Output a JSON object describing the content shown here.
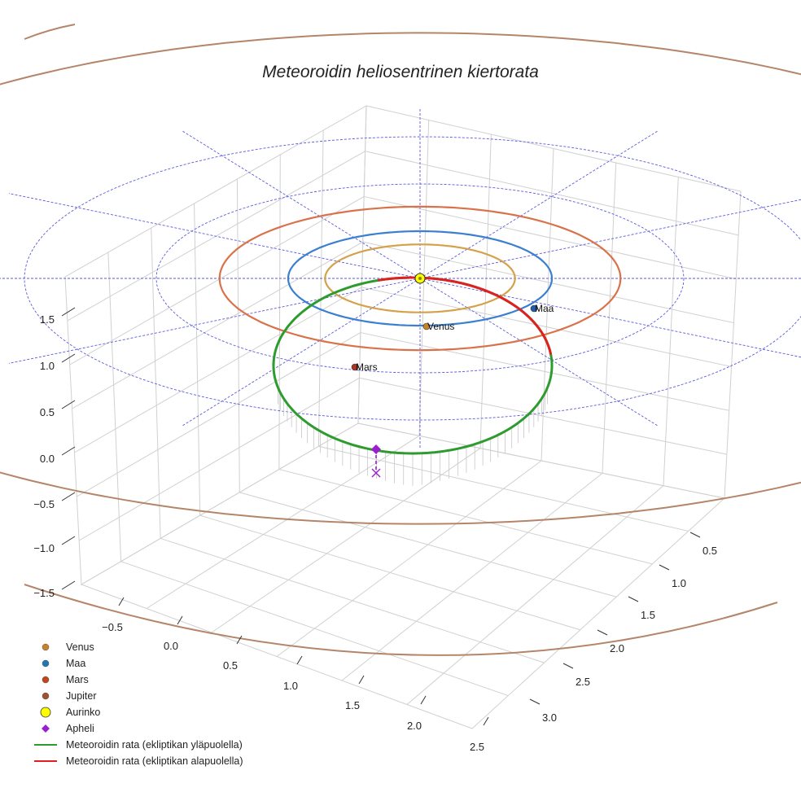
{
  "chart_data": {
    "type": "3d-orbit",
    "title": "Meteoroidin heliosentrinen kiertorata",
    "axes": {
      "x": {
        "ticks": [
          "−0.5",
          "0.0",
          "0.5",
          "1.0",
          "1.5",
          "2.0",
          "2.5"
        ]
      },
      "y": {
        "ticks": [
          "0.5",
          "1.0",
          "1.5",
          "2.0",
          "2.5",
          "3.0"
        ]
      },
      "z": {
        "ticks": [
          "1.5",
          "1.0",
          "0.5",
          "0.0",
          "−0.5",
          "−1.0",
          "−1.5"
        ]
      }
    },
    "planets": [
      {
        "name": "Venus",
        "label": "Venus",
        "orbit_radius_au": 0.72,
        "color": "#d4a24a",
        "marker": "#c8832a"
      },
      {
        "name": "Maa",
        "label": "Maa",
        "orbit_radius_au": 1.0,
        "color": "#3a7fd0",
        "marker": "#1f5fa8"
      },
      {
        "name": "Mars",
        "label": "Mars",
        "orbit_radius_au": 1.52,
        "color": "#d9714a",
        "marker": "#a8351f"
      },
      {
        "name": "Jupiter",
        "label": "",
        "orbit_radius_au": 5.2,
        "color": "#b5856a",
        "marker": "#8a5a3a"
      }
    ],
    "reference_circles_au": [
      1,
      2,
      3
    ],
    "meteoroid": {
      "above_color": "#2e9b2e",
      "below_color": "#e02020",
      "aphelion_color": "#9b1fcc"
    },
    "legend": {
      "position": "bottom-left",
      "entries": [
        {
          "label": "Venus",
          "kind": "dot",
          "color": "#c8832a"
        },
        {
          "label": "Maa",
          "kind": "dot",
          "color": "#1f77b4"
        },
        {
          "label": "Mars",
          "kind": "dot",
          "color": "#c2461c"
        },
        {
          "label": "Jupiter",
          "kind": "dot",
          "color": "#a0522d"
        },
        {
          "label": "Aurinko",
          "kind": "sun",
          "color": "#ffff00"
        },
        {
          "label": "Apheli",
          "kind": "diamond",
          "color": "#9b1fcc"
        },
        {
          "label": "Meteoroidin rata (ekliptikan yläpuolella)",
          "kind": "line",
          "color": "#2e9b2e"
        },
        {
          "label": "Meteoroidin rata (ekliptikan alapuolella)",
          "kind": "line",
          "color": "#e02020"
        }
      ]
    }
  }
}
